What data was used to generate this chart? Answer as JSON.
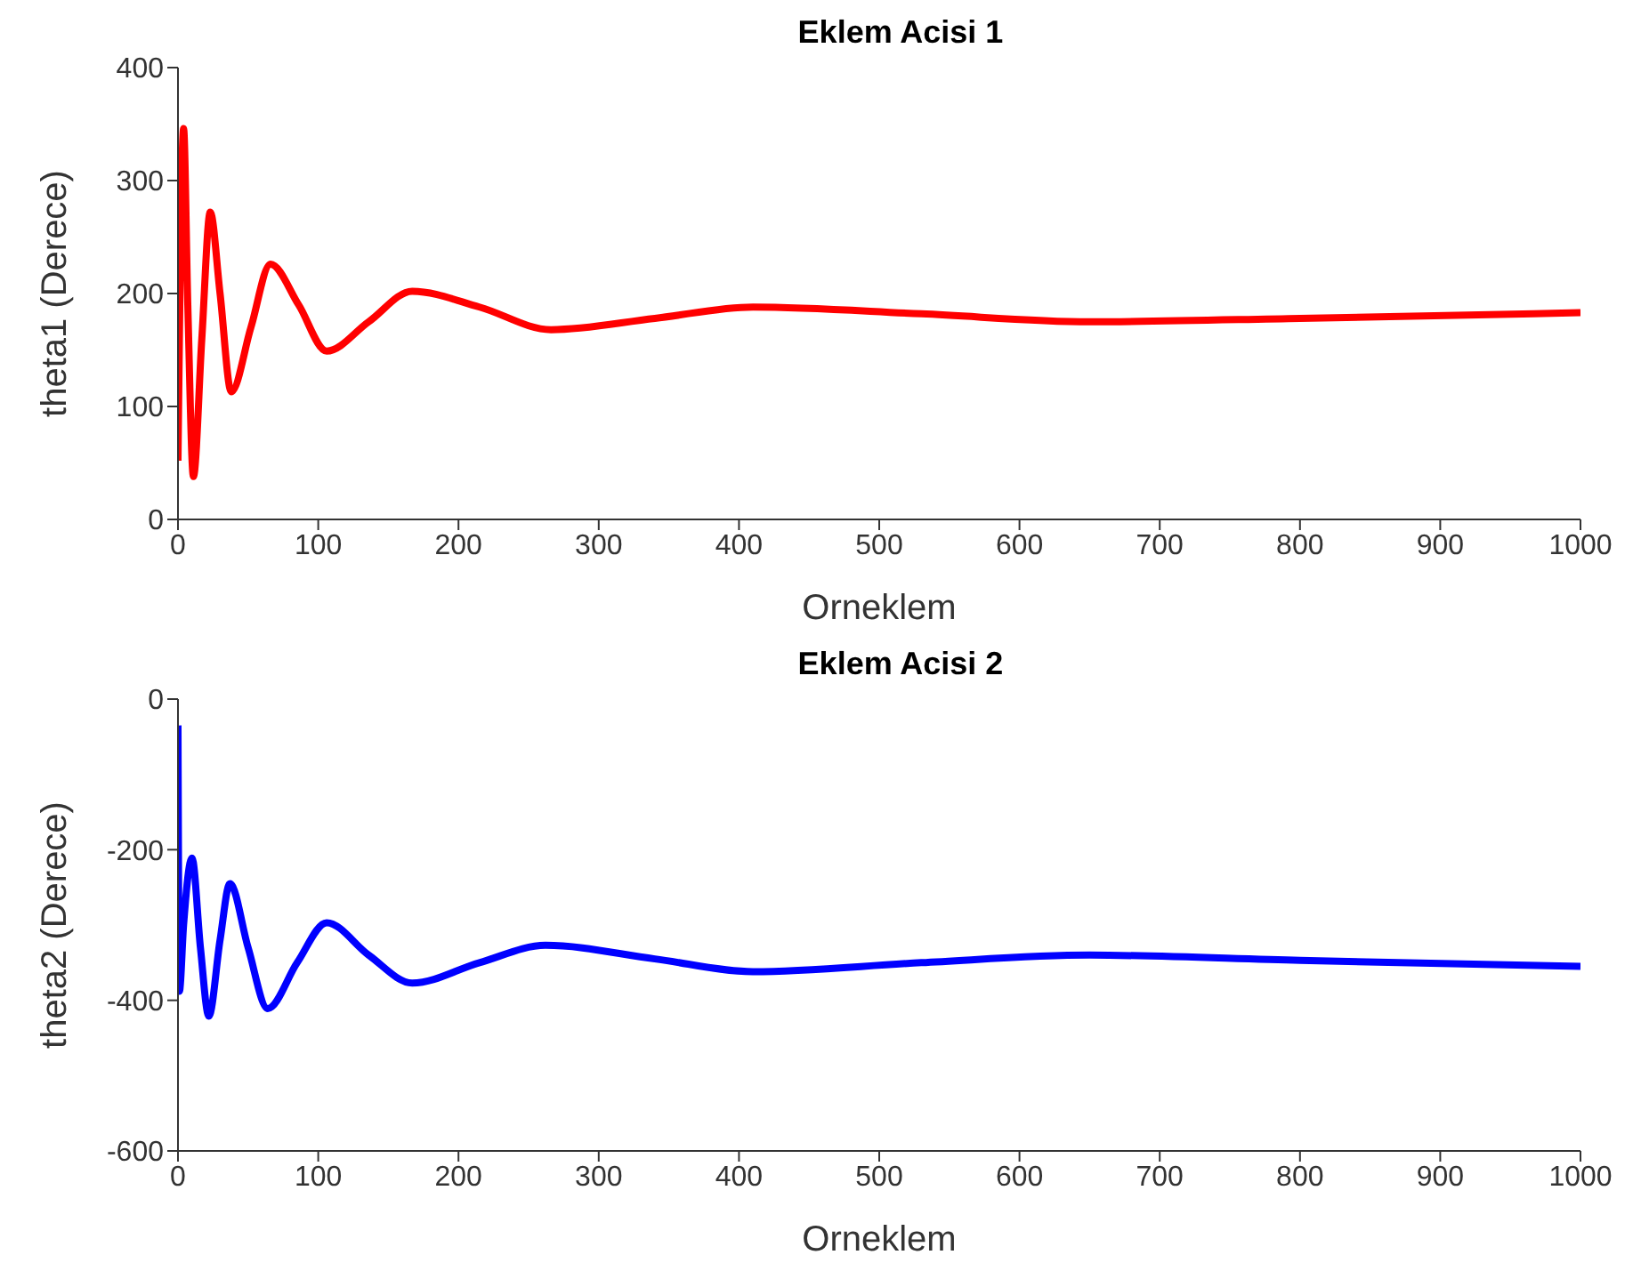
{
  "chart_data": [
    {
      "type": "line",
      "title": "Eklem Acisi 1",
      "xlabel": "Orneklem",
      "ylabel": "theta1 (Derece)",
      "xlim": [
        0,
        1000
      ],
      "xticks": [
        0,
        100,
        200,
        300,
        400,
        500,
        600,
        700,
        800,
        900,
        1000
      ],
      "ylim": [
        0,
        400
      ],
      "yticks": [
        0,
        100,
        200,
        300,
        400
      ],
      "marker": "none",
      "line_style": "solid",
      "series": [
        {
          "color": "#ff0000",
          "x": [
            0,
            4,
            7,
            11,
            17,
            23,
            30,
            38,
            52,
            66,
            86,
            106,
            136,
            167,
            215,
            266,
            340,
            410,
            530,
            650,
            800,
            1000
          ],
          "values": [
            52,
            346,
            190,
            38,
            160,
            272,
            200,
            113,
            170,
            226,
            190,
            149,
            175,
            202,
            188,
            168,
            178,
            188,
            182,
            175,
            178,
            183
          ]
        }
      ]
    },
    {
      "type": "line",
      "title": "Eklem Acisi 2",
      "xlabel": "Orneklem",
      "ylabel": "theta2 (Derece)",
      "xlim": [
        0,
        1000
      ],
      "xticks": [
        0,
        100,
        200,
        300,
        400,
        500,
        600,
        700,
        800,
        900,
        1000
      ],
      "ylim": [
        -600,
        0
      ],
      "yticks": [
        -600,
        -400,
        -200,
        0
      ],
      "marker": "none",
      "line_style": "solid",
      "series": [
        {
          "color": "#0000ff",
          "x": [
            0,
            1,
            4,
            10,
            16,
            22,
            30,
            37,
            50,
            64,
            85,
            106,
            136,
            167,
            215,
            262,
            340,
            410,
            530,
            650,
            800,
            1000
          ],
          "values": [
            -35,
            -388,
            -300,
            -211,
            -330,
            -421,
            -320,
            -245,
            -330,
            -411,
            -350,
            -297,
            -340,
            -377,
            -350,
            -327,
            -345,
            -362,
            -350,
            -340,
            -347,
            -355
          ]
        }
      ]
    }
  ]
}
